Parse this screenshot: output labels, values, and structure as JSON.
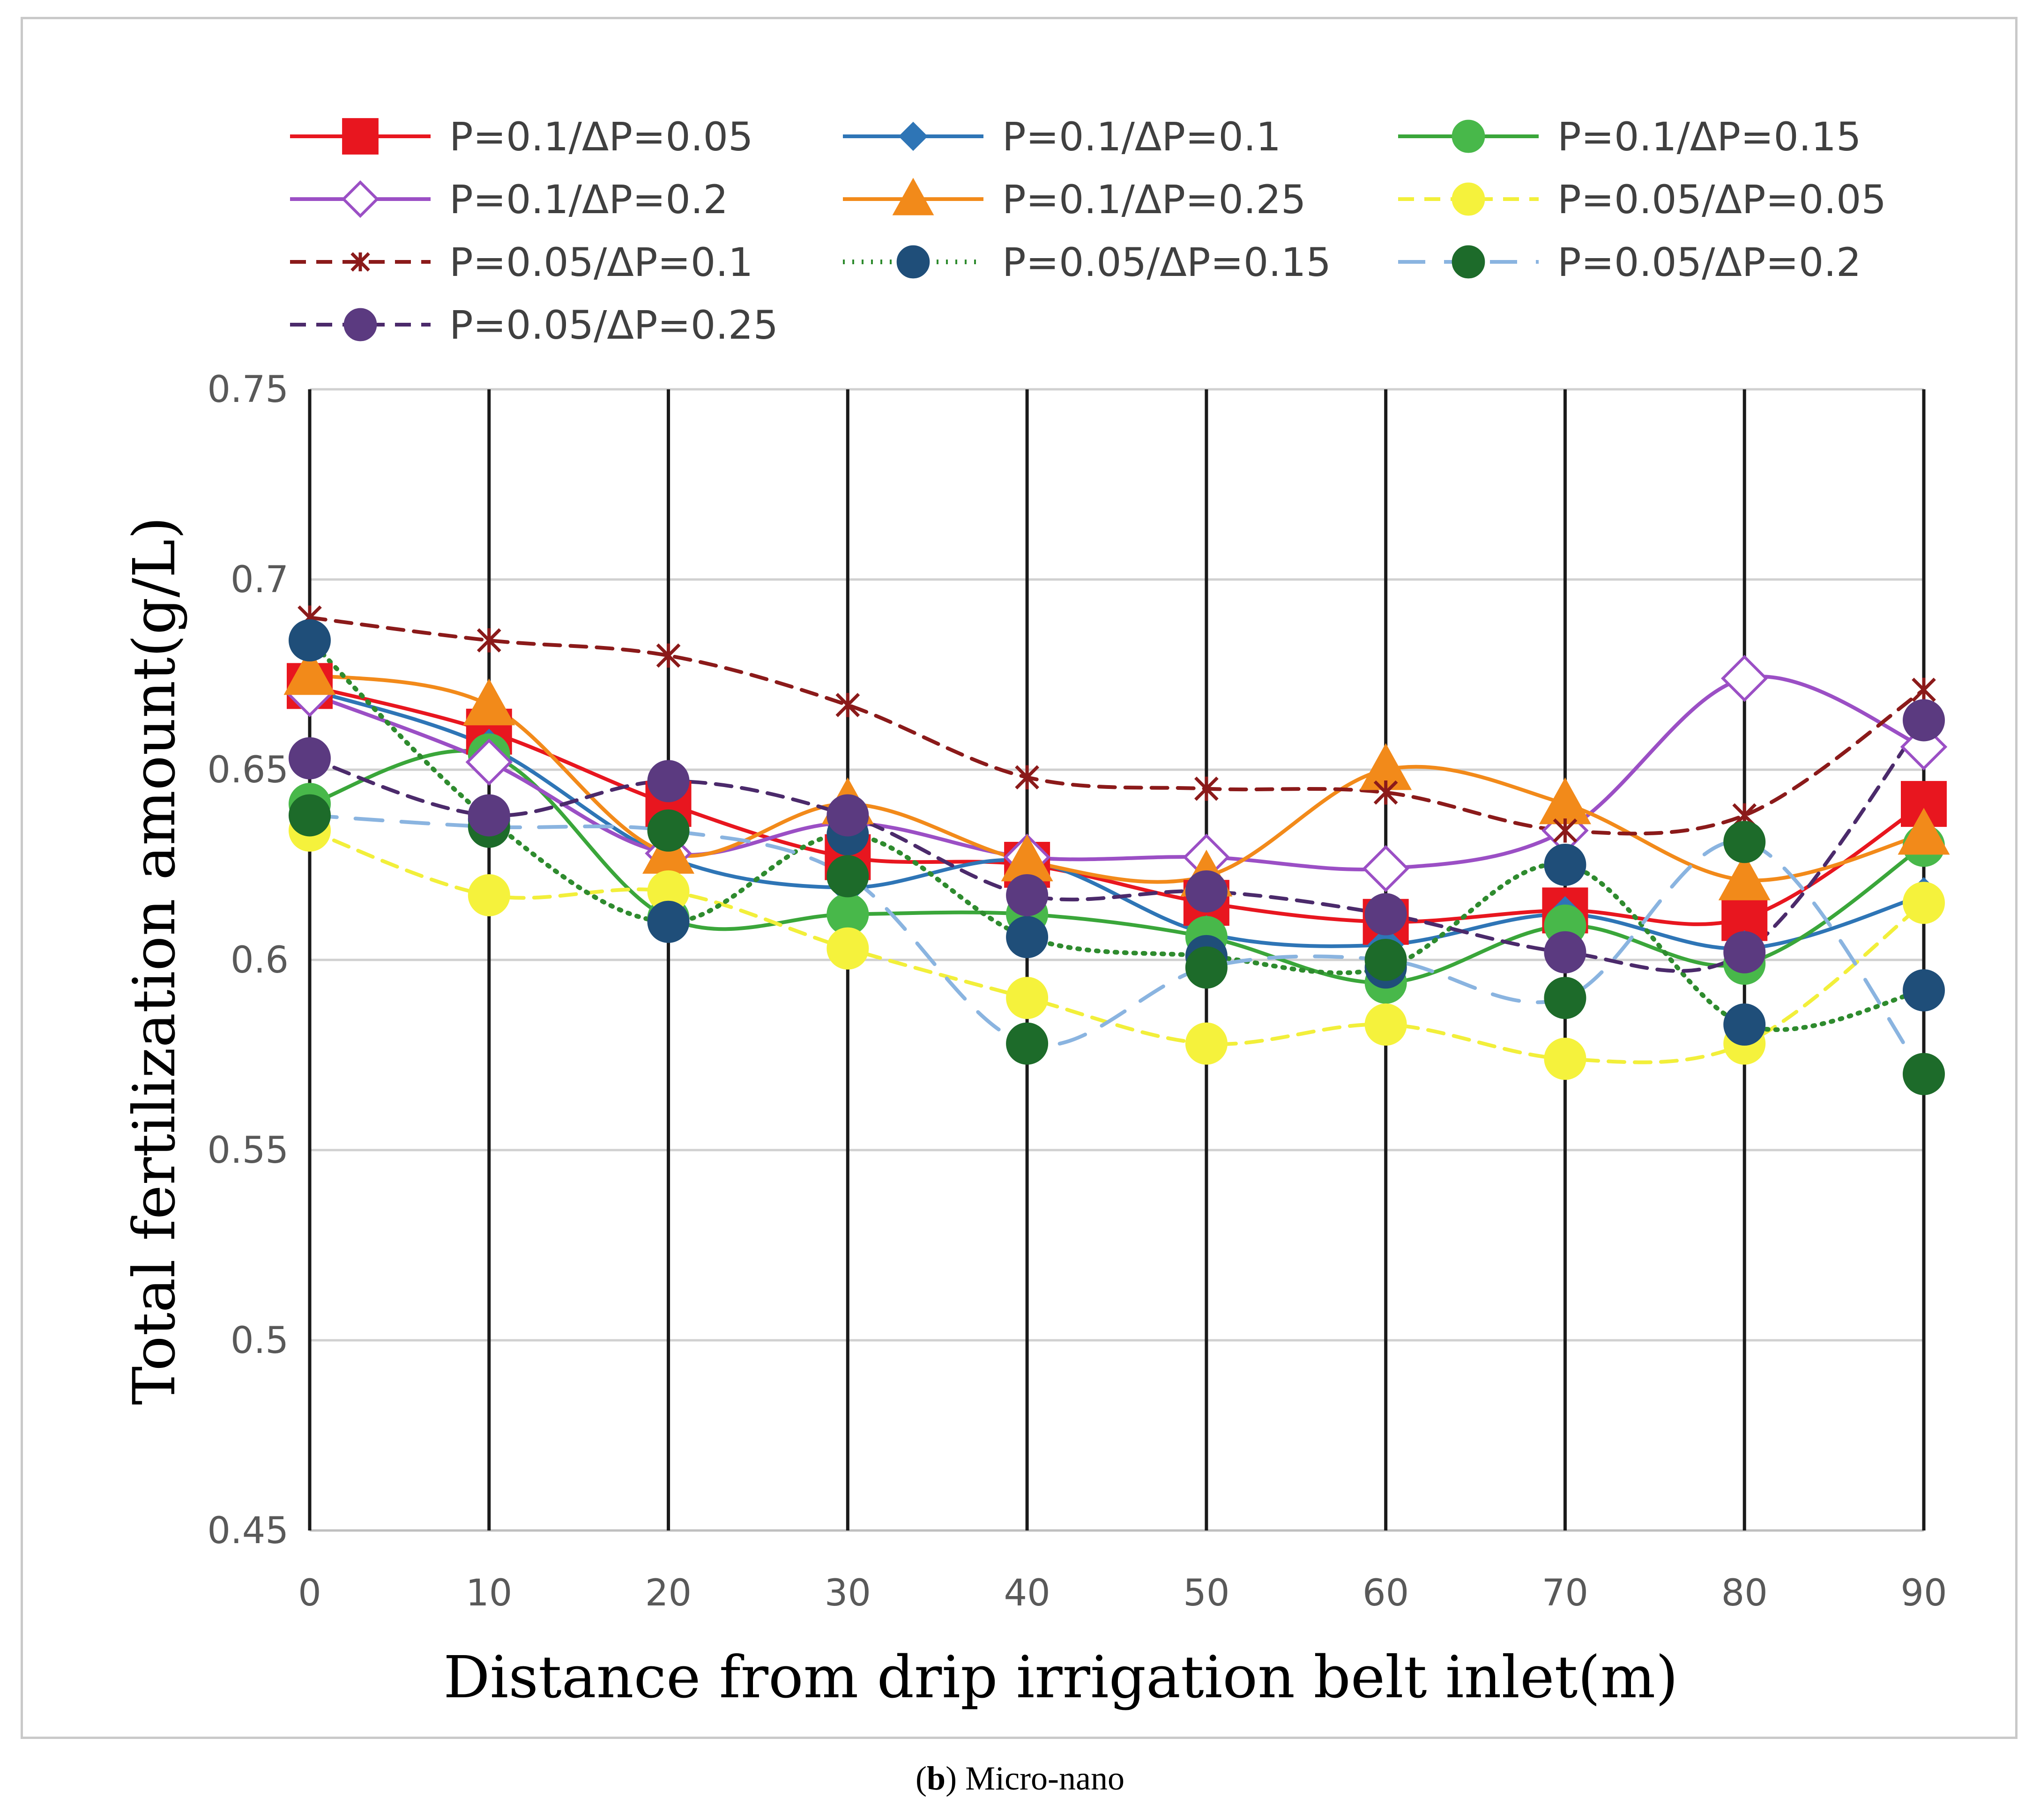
{
  "caption": {
    "label": "b",
    "text": "Micro-nano"
  },
  "chart_data": {
    "type": "line",
    "title": "",
    "xlabel": "Distance from drip irrigation belt inlet(m)",
    "ylabel": "Total fertilization amount(g/L)",
    "ylim": [
      0.45,
      0.75
    ],
    "yticks": [
      0.45,
      0.5,
      0.55,
      0.6,
      0.65,
      0.7,
      0.75
    ],
    "ytick_labels": [
      "0.45",
      "0.5",
      "0.55",
      "0.6",
      "0.65",
      "0.7",
      "0.75"
    ],
    "x": [
      0,
      10,
      20,
      30,
      40,
      50,
      60,
      70,
      80,
      90
    ],
    "xtick_labels": [
      "0",
      "10",
      "20",
      "30",
      "40",
      "50",
      "60",
      "70",
      "80",
      "90"
    ],
    "grid": {
      "horizontal": true,
      "vertical": true
    },
    "legend_position": "top",
    "series": [
      {
        "name": "P=0.1/ΔP=0.05",
        "color": "#e8161f",
        "dash": "solid",
        "marker": "square",
        "marker_fill": "#e8161f",
        "values": [
          0.672,
          0.66,
          0.641,
          0.627,
          0.625,
          0.615,
          0.61,
          0.613,
          0.611,
          0.641
        ]
      },
      {
        "name": "P=0.1/ΔP=0.1",
        "color": "#2e75b6",
        "dash": "solid",
        "marker": "diamond",
        "marker_fill": "#2e75b6",
        "values": [
          0.671,
          0.656,
          0.627,
          0.619,
          0.626,
          0.607,
          0.604,
          0.612,
          0.603,
          0.617
        ]
      },
      {
        "name": "P=0.1/ΔP=0.15",
        "color": "#3aa63a",
        "dash": "solid",
        "marker": "circle",
        "marker_fill": "#48b84a",
        "values": [
          0.641,
          0.654,
          0.611,
          0.612,
          0.612,
          0.606,
          0.594,
          0.609,
          0.599,
          0.63
        ]
      },
      {
        "name": "P=0.1/ΔP=0.2",
        "color": "#9b4fc5",
        "dash": "solid",
        "marker": "diamond-open",
        "marker_fill": "#ffffff",
        "values": [
          0.67,
          0.652,
          0.628,
          0.636,
          0.627,
          0.627,
          0.624,
          0.634,
          0.674,
          0.656
        ]
      },
      {
        "name": "P=0.1/ΔP=0.25",
        "color": "#f28a1a",
        "dash": "solid",
        "marker": "triangle",
        "marker_fill": "#f28a1a",
        "values": [
          0.675,
          0.667,
          0.628,
          0.641,
          0.626,
          0.622,
          0.65,
          0.641,
          0.621,
          0.633
        ]
      },
      {
        "name": "P=0.05/ΔP=0.05",
        "color": "#f2ef3a",
        "dash": "dashed",
        "marker": "circle",
        "marker_fill": "#f5f23c",
        "values": [
          0.634,
          0.617,
          0.618,
          0.603,
          0.59,
          0.578,
          0.583,
          0.574,
          0.578,
          0.615
        ]
      },
      {
        "name": "P=0.05/ΔP=0.1",
        "color": "#8b1a1a",
        "dash": "dashed",
        "marker": "star",
        "marker_fill": "#8b1a1a",
        "values": [
          0.69,
          0.684,
          0.68,
          0.667,
          0.648,
          0.645,
          0.644,
          0.634,
          0.638,
          0.671
        ]
      },
      {
        "name": "P=0.05/ΔP=0.15",
        "color": "#2e8b2e",
        "dash": "dotted",
        "marker": "circle",
        "marker_fill": "#1f4e79",
        "values": [
          0.684,
          0.637,
          0.61,
          0.633,
          0.606,
          0.601,
          0.598,
          0.625,
          0.583,
          0.592
        ]
      },
      {
        "name": "P=0.05/ΔP=0.2",
        "color": "#8ab4e0",
        "dash": "long-dashed",
        "marker": "circle",
        "marker_fill": "#1d6b2a",
        "values": [
          0.638,
          0.635,
          0.634,
          0.622,
          0.578,
          0.598,
          0.6,
          0.59,
          0.631,
          0.57
        ]
      },
      {
        "name": "P=0.05/ΔP=0.25",
        "color": "#4b2a6b",
        "dash": "dashed",
        "marker": "circle",
        "marker_fill": "#5b3a80",
        "values": [
          0.653,
          0.638,
          0.647,
          0.638,
          0.617,
          0.618,
          0.612,
          0.602,
          0.602,
          0.663
        ]
      }
    ]
  }
}
